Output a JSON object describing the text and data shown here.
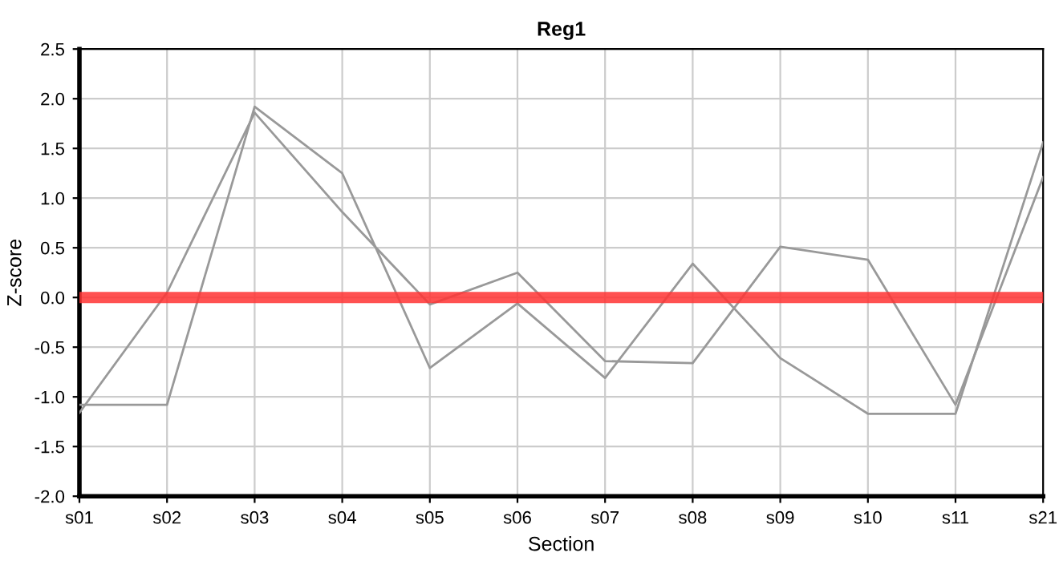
{
  "chart_data": {
    "type": "line",
    "title": "Reg1",
    "xlabel": "Section",
    "ylabel": "Z-score",
    "categories": [
      "s01",
      "s02",
      "s03",
      "s04",
      "s05",
      "s06",
      "s07",
      "s08",
      "s09",
      "s10",
      "s11",
      "s21"
    ],
    "series": [
      {
        "color": "#999999",
        "values": [
          -1.08,
          -1.08,
          1.92,
          1.25,
          -0.71,
          -0.06,
          -0.81,
          0.34,
          -0.61,
          -1.17,
          -1.17,
          1.56
        ]
      },
      {
        "color": "#999999",
        "values": [
          -1.16,
          0.05,
          1.86,
          0.86,
          -0.07,
          0.25,
          -0.64,
          -0.66,
          0.51,
          0.38,
          -1.08,
          1.21
        ]
      }
    ],
    "ylim": [
      -2.0,
      2.5
    ],
    "yticks": [
      {
        "value": -2.0,
        "label": "-2.0"
      },
      {
        "value": -1.5,
        "label": "-1.5"
      },
      {
        "value": -1.0,
        "label": "-1.0"
      },
      {
        "value": -0.5,
        "label": "-0.5"
      },
      {
        "value": 0.0,
        "label": "0.0"
      },
      {
        "value": 0.5,
        "label": "0.5"
      },
      {
        "value": 1.0,
        "label": "1.0"
      },
      {
        "value": 1.5,
        "label": "1.5"
      },
      {
        "value": 2.0,
        "label": "2.0"
      },
      {
        "value": 2.5,
        "label": "2.5"
      }
    ],
    "ref_lines": [
      {
        "axis": "y",
        "value": 0,
        "color": "#ff3333"
      }
    ],
    "grid": true,
    "legend": false,
    "marker": "none",
    "line_style": "solid"
  }
}
